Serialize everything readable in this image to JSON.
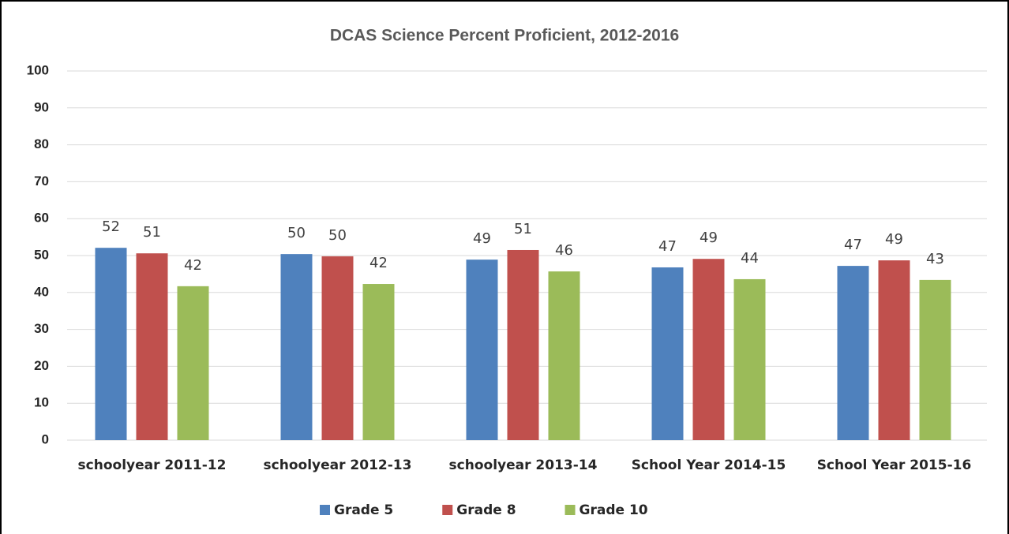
{
  "chart_data": {
    "type": "bar",
    "title": "DCAS Science Percent Proficient, 2012-2016",
    "categories": [
      "schoolyear 2011-12",
      "schoolyear 2012-13",
      "schoolyear 2013-14",
      "School Year 2014-15",
      "School Year 2015-16"
    ],
    "series": [
      {
        "name": "Grade 5",
        "color": "#4f81bd",
        "values": [
          52.1,
          50.4,
          48.9,
          46.8,
          47.2
        ],
        "value_labels": [
          "52",
          "50",
          "49",
          "47",
          "47"
        ]
      },
      {
        "name": "Grade 8",
        "color": "#c0504d",
        "values": [
          50.6,
          49.8,
          51.5,
          49.1,
          48.7
        ],
        "value_labels": [
          "51",
          "50",
          "51",
          "49",
          "49"
        ]
      },
      {
        "name": "Grade 10",
        "color": "#9bbb59",
        "values": [
          41.7,
          42.3,
          45.7,
          43.6,
          43.4
        ],
        "value_labels": [
          "42",
          "42",
          "46",
          "44",
          "43"
        ]
      }
    ],
    "ylim": [
      0,
      100
    ],
    "yticks": [
      0,
      10,
      20,
      30,
      40,
      50,
      60,
      70,
      80,
      90,
      100
    ],
    "grid": true,
    "legend": "bottom"
  }
}
